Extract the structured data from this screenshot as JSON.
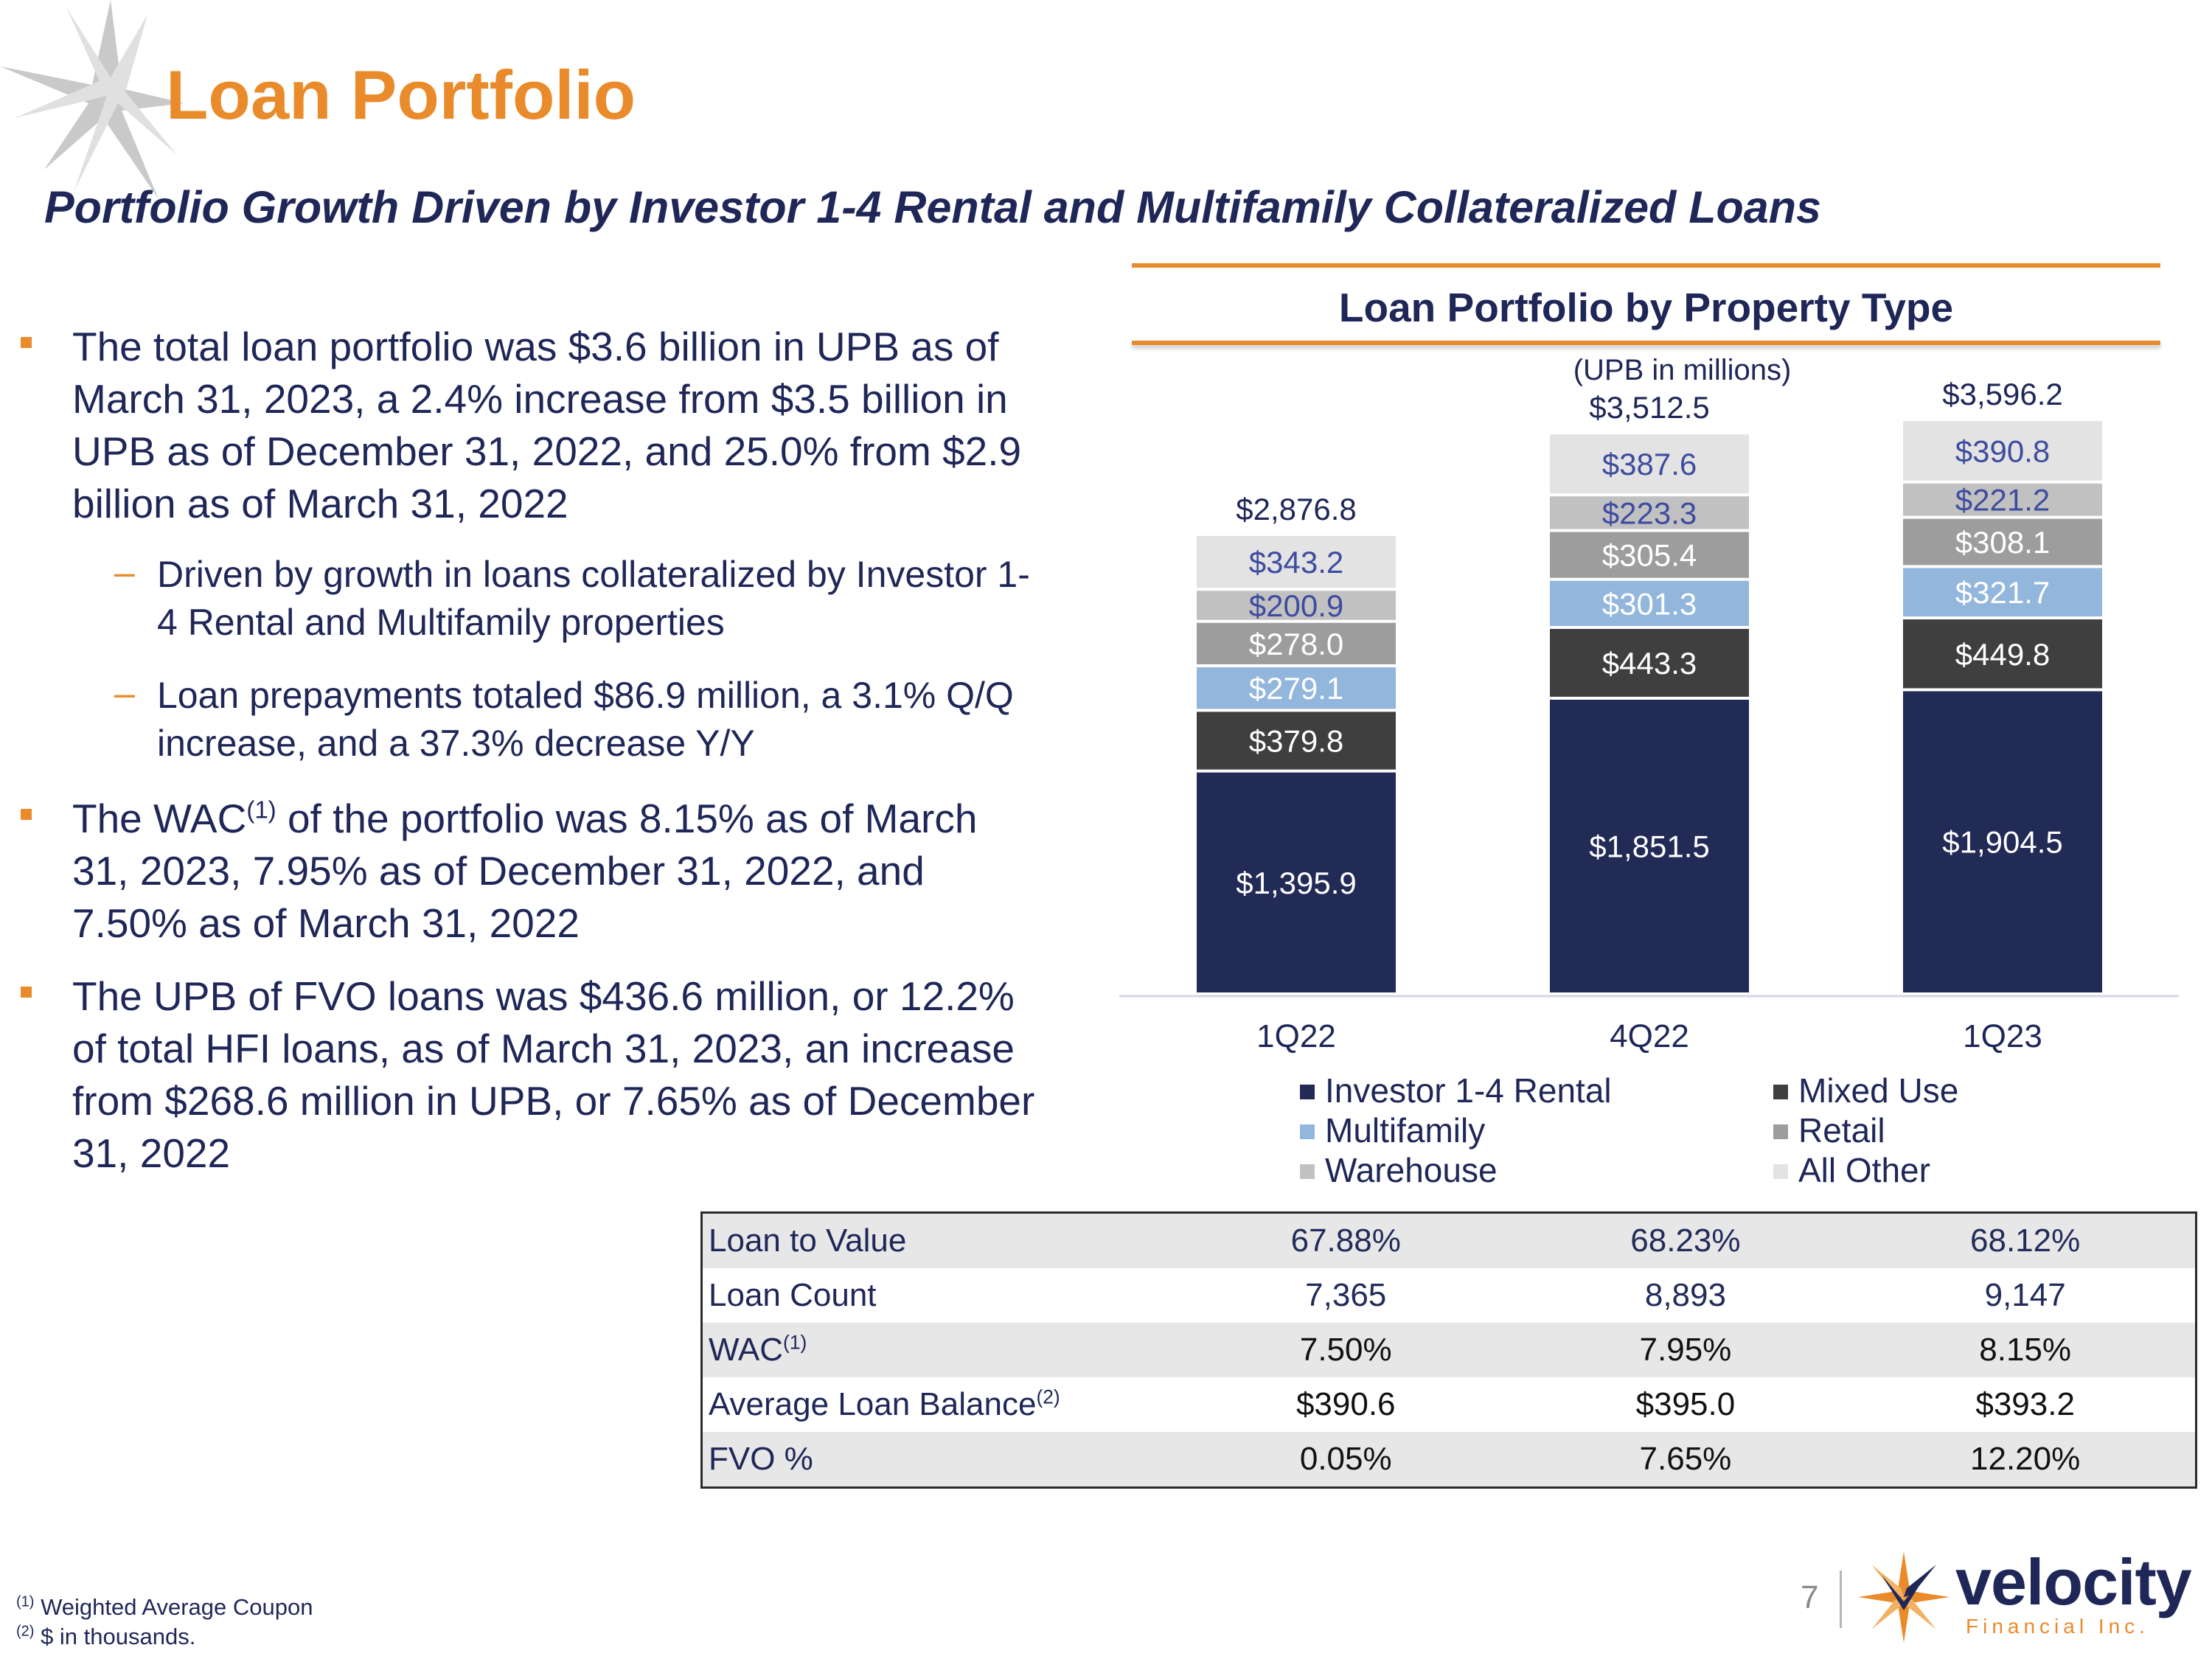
{
  "header": {
    "title": "Loan Portfolio",
    "subtitle": "Portfolio Growth Driven by Investor 1-4 Rental and Multifamily Collateralized Loans"
  },
  "bullets": {
    "b1": "The total loan portfolio was $3.6 billion in UPB as of March 31, 2023, a 2.4% increase from $3.5 billion in UPB as of December 31, 2022, and 25.0% from $2.9 billion as of March 31, 2022",
    "b1_subs": [
      "Driven by growth in loans collateralized by Investor 1-4 Rental and Multifamily properties",
      "Loan prepayments totaled $86.9 million, a 3.1% Q/Q increase, and a 37.3% decrease Y/Y"
    ],
    "b2_pre": "The WAC",
    "b2_sup": "(1)",
    "b2_post": " of the portfolio was 8.15% as of March 31, 2023, 7.95% as of December 31, 2022, and 7.50% as of March 31, 2022",
    "b3": "The UPB of FVO loans was $436.6 million, or 12.2% of total HFI loans, as of March 31, 2023, an increase from $268.6 million in UPB, or 7.65% as of December 31, 2022"
  },
  "chart_data": {
    "type": "bar",
    "stacked": true,
    "title": "Loan Portfolio by Property Type",
    "subtitle": "(UPB in millions)",
    "categories": [
      "1Q22",
      "4Q22",
      "1Q23"
    ],
    "totals": [
      "$2,876.8",
      "$3,512.5",
      "$3,596.2"
    ],
    "total_values": [
      2876.8,
      3512.5,
      3596.2
    ],
    "series": [
      {
        "name": "Investor 1-4 Rental",
        "color": "#222a56",
        "label_color": "#ffffff",
        "values": [
          1395.9,
          1851.5,
          1904.5
        ],
        "labels": [
          "$1,395.9",
          "$1,851.5",
          "$1,904.5"
        ]
      },
      {
        "name": "Mixed Use",
        "color": "#3f3f3f",
        "label_color": "#ffffff",
        "values": [
          379.8,
          443.3,
          449.8
        ],
        "labels": [
          "$379.8",
          "$443.3",
          "$449.8"
        ]
      },
      {
        "name": "Multifamily",
        "color": "#93b6dc",
        "label_color": "#ffffff",
        "values": [
          279.1,
          301.3,
          321.7
        ],
        "labels": [
          "$279.1",
          "$301.3",
          "$321.7"
        ]
      },
      {
        "name": "Retail",
        "color": "#9d9d9d",
        "label_color": "#ffffff",
        "values": [
          278.0,
          305.4,
          308.1
        ],
        "labels": [
          "$278.0",
          "$305.4",
          "$308.1"
        ]
      },
      {
        "name": "Warehouse",
        "color": "#c1c1c1",
        "label_color": "#3e4ca0",
        "values": [
          200.9,
          223.3,
          221.2
        ],
        "labels": [
          "$200.9",
          "$223.3",
          "$221.2"
        ]
      },
      {
        "name": "All Other",
        "color": "#e3e3e3",
        "label_color": "#3e4ca0",
        "values": [
          343.2,
          387.6,
          390.8
        ],
        "labels": [
          "$343.2",
          "$387.6",
          "$390.8"
        ]
      }
    ],
    "legend": {
      "left": [
        "Investor 1-4 Rental",
        "Multifamily",
        "Warehouse"
      ],
      "right": [
        "Mixed Use",
        "Retail",
        "All Other"
      ]
    }
  },
  "metrics": {
    "rows": [
      {
        "label": "Loan to Value",
        "sup": "",
        "values": [
          "67.88%",
          "68.23%",
          "68.12%"
        ]
      },
      {
        "label": "Loan Count",
        "sup": "",
        "values": [
          "7,365",
          "8,893",
          "9,147"
        ]
      },
      {
        "label": "WAC",
        "sup": "(1)",
        "values": [
          "7.50%",
          "7.95%",
          "8.15%"
        ]
      },
      {
        "label": "Average Loan Balance",
        "sup": "(2)",
        "values": [
          "$390.6",
          "$395.0",
          "$393.2"
        ]
      },
      {
        "label": "FVO %",
        "sup": "",
        "values": [
          "0.05%",
          "7.65%",
          "12.20%"
        ]
      }
    ]
  },
  "footnotes": [
    {
      "mark": "(1)",
      "text": " Weighted Average Coupon"
    },
    {
      "mark": "(2)",
      "text": " $ in thousands."
    }
  ],
  "footer": {
    "page_number": "7",
    "logo_word": "velocity",
    "logo_sub": "Financial Inc."
  },
  "colors": {
    "accent": "#ea8b2b",
    "navy": "#1f2758"
  }
}
